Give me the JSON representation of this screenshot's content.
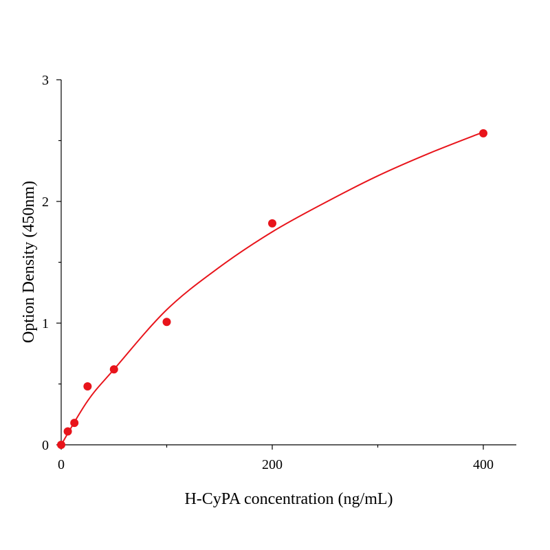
{
  "chart_data": {
    "type": "scatter",
    "xlabel": "H-CyPA concentration (ng/mL)",
    "ylabel": "Option Density (450nm)",
    "xlim": [
      0,
      430
    ],
    "ylim": [
      0,
      3
    ],
    "x_ticks": [
      0,
      200,
      400
    ],
    "x_minor_ticks": [
      100,
      300
    ],
    "y_ticks": [
      0,
      1,
      2,
      3
    ],
    "y_minor_ticks": [
      0.5,
      1.5,
      2.5
    ],
    "grid": false,
    "legend": "none",
    "series": [
      {
        "marker_color": "#e8141b",
        "points": [
          {
            "x": 0,
            "y": 0.0
          },
          {
            "x": 6.25,
            "y": 0.11
          },
          {
            "x": 12.5,
            "y": 0.18
          },
          {
            "x": 25,
            "y": 0.48
          },
          {
            "x": 50,
            "y": 0.62
          },
          {
            "x": 100,
            "y": 1.01
          },
          {
            "x": 200,
            "y": 1.82
          },
          {
            "x": 400,
            "y": 2.56
          }
        ]
      }
    ],
    "fit_curve": {
      "color": "#e8141b",
      "points": [
        {
          "x": 0,
          "y": 0.0
        },
        {
          "x": 25,
          "y": 0.36
        },
        {
          "x": 50,
          "y": 0.62
        },
        {
          "x": 100,
          "y": 1.11
        },
        {
          "x": 150,
          "y": 1.46
        },
        {
          "x": 200,
          "y": 1.75
        },
        {
          "x": 250,
          "y": 1.99
        },
        {
          "x": 300,
          "y": 2.21
        },
        {
          "x": 350,
          "y": 2.4
        },
        {
          "x": 400,
          "y": 2.57
        }
      ]
    }
  }
}
